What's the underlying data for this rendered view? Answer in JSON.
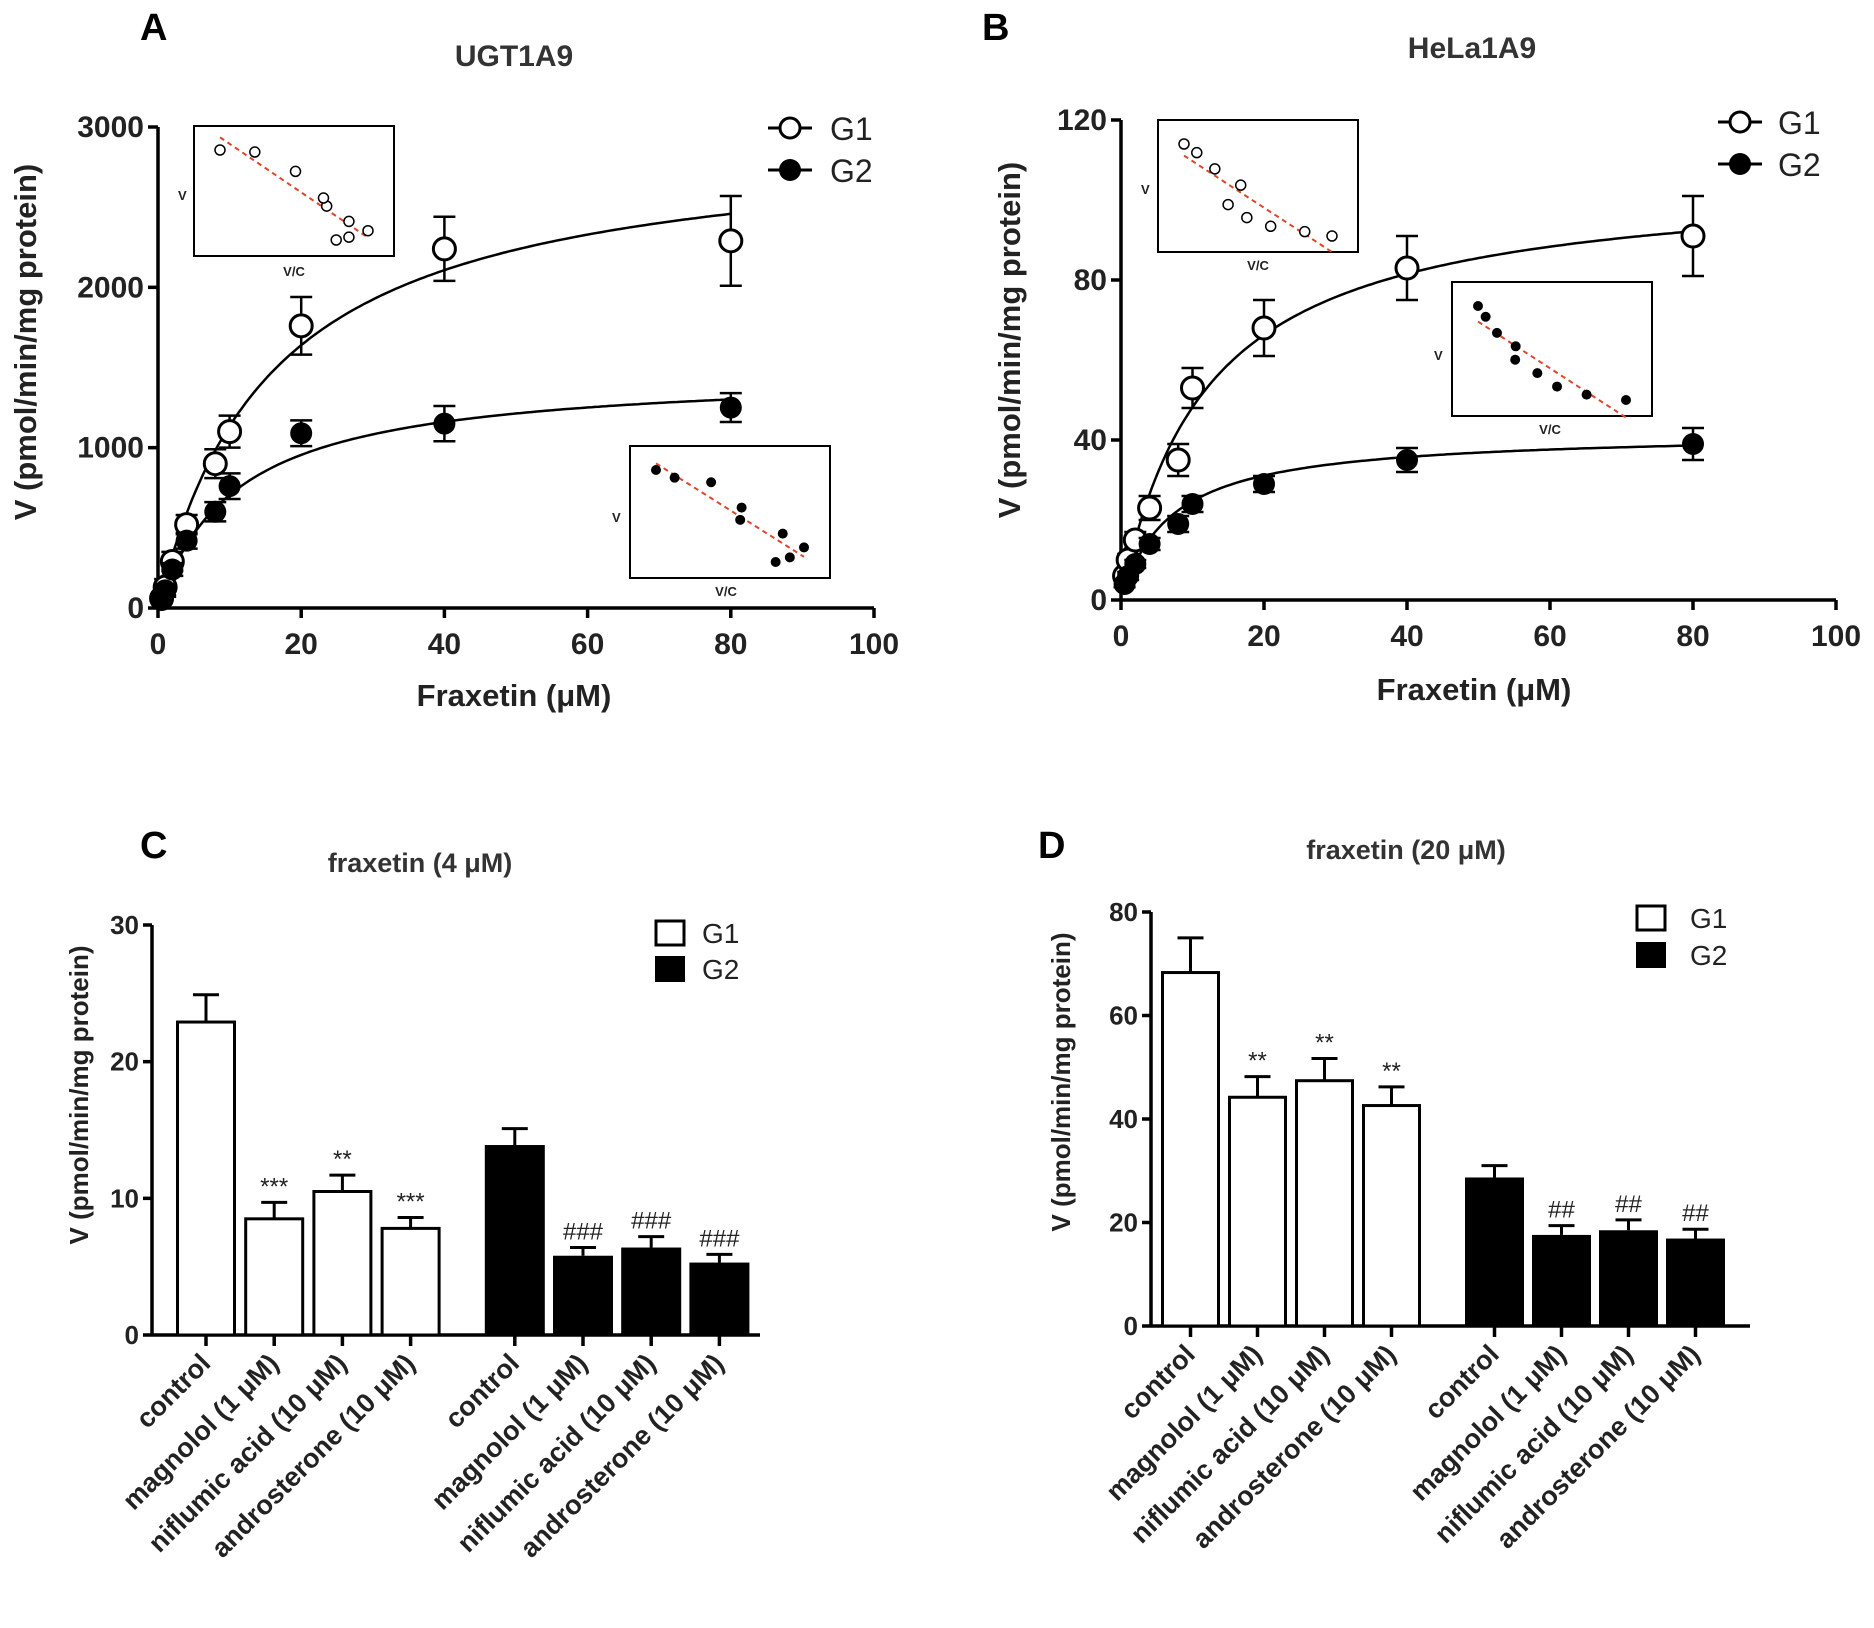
{
  "chart_data": [
    {
      "panel": "A",
      "type": "scatter",
      "title": "UGT1A9",
      "xlabel": "Fraxetin (μM)",
      "ylabel": "V (pmol/min/mg protein)",
      "xlim": [
        0,
        100
      ],
      "ylim": [
        0,
        3000
      ],
      "xticks": [
        0,
        20,
        40,
        60,
        80,
        100
      ],
      "yticks": [
        0,
        1000,
        2000,
        3000
      ],
      "x": [
        0.5,
        1,
        2,
        4,
        8,
        10,
        20,
        40,
        80
      ],
      "series": [
        {
          "name": "G1",
          "marker": "open-circle",
          "values": [
            60,
            130,
            290,
            520,
            900,
            1100,
            1760,
            2240,
            2290
          ],
          "errors": [
            30,
            50,
            60,
            60,
            90,
            100,
            180,
            200,
            280
          ],
          "fit": {
            "vmax": 2950,
            "km": 16
          }
        },
        {
          "name": "G2",
          "marker": "filled-circle",
          "values": [
            50,
            110,
            240,
            420,
            600,
            760,
            1090,
            1150,
            1250
          ],
          "errors": [
            20,
            40,
            40,
            50,
            60,
            80,
            80,
            110,
            90
          ],
          "fit": {
            "vmax": 1480,
            "km": 11
          }
        }
      ],
      "insets": [
        {
          "series": "G1",
          "ylabel": "V",
          "xlabel": "V/C"
        },
        {
          "series": "G2",
          "ylabel": "V",
          "xlabel": "V/C"
        }
      ]
    },
    {
      "panel": "B",
      "type": "scatter",
      "title": "HeLa1A9",
      "xlabel": "Fraxetin (μM)",
      "ylabel": "V (pmol/min/mg protein)",
      "xlim": [
        0,
        100
      ],
      "ylim": [
        0,
        120
      ],
      "xticks": [
        0,
        20,
        40,
        60,
        80,
        100
      ],
      "yticks": [
        0,
        40,
        80,
        120
      ],
      "x": [
        0.5,
        1,
        2,
        4,
        8,
        10,
        20,
        40,
        80
      ],
      "series": [
        {
          "name": "G1",
          "marker": "open-circle",
          "values": [
            6,
            10,
            15,
            23,
            35,
            53,
            68,
            83,
            91
          ],
          "errors": [
            1,
            1.5,
            2,
            3,
            4,
            5,
            7,
            8,
            10
          ],
          "fit": {
            "vmax": 106,
            "km": 12
          }
        },
        {
          "name": "G2",
          "marker": "filled-circle",
          "values": [
            4,
            6,
            9,
            14,
            19,
            24,
            29,
            35,
            39
          ],
          "errors": [
            0.8,
            1,
            1,
            1.5,
            2,
            2,
            2,
            3,
            4
          ],
          "fit": {
            "vmax": 42,
            "km": 7
          }
        }
      ],
      "insets": [
        {
          "series": "G1",
          "ylabel": "V",
          "xlabel": "V/C"
        },
        {
          "series": "G2",
          "ylabel": "V",
          "xlabel": "V/C"
        }
      ]
    },
    {
      "panel": "C",
      "type": "bar",
      "title": "fraxetin (4 μM)",
      "ylabel": "V (pmol/min/mg protein)",
      "ylim": [
        0,
        30
      ],
      "yticks": [
        0,
        10,
        20,
        30
      ],
      "legend": [
        "G1",
        "G2"
      ],
      "categories": [
        "control",
        "magnolol (1 μM)",
        "niflumic acid (10 μM)",
        "androsterone (10 μM)",
        "control",
        "magnolol (1 μM)",
        "niflumic acid (10 μM)",
        "androsterone (10 μM)"
      ],
      "groups": [
        "G1",
        "G1",
        "G1",
        "G1",
        "G2",
        "G2",
        "G2",
        "G2"
      ],
      "values": [
        22.9,
        8.5,
        10.5,
        7.8,
        13.9,
        5.8,
        6.4,
        5.3
      ],
      "errors": [
        2.0,
        1.2,
        1.2,
        0.8,
        1.2,
        0.6,
        0.8,
        0.6
      ],
      "annotations": [
        "",
        "***",
        "**",
        "***",
        "",
        "###",
        "###",
        "###"
      ]
    },
    {
      "panel": "D",
      "type": "bar",
      "title": "fraxetin (20 μM)",
      "ylabel": "V (pmol/min/mg protein)",
      "ylim": [
        0,
        80
      ],
      "yticks": [
        0,
        20,
        40,
        60,
        80
      ],
      "legend": [
        "G1",
        "G2"
      ],
      "categories": [
        "control",
        "magnolol (1 μM)",
        "niflumic acid (10 μM)",
        "androsterone (10 μM)",
        "control",
        "magnolol (1 μM)",
        "niflumic acid (10 μM)",
        "androsterone (10 μM)"
      ],
      "groups": [
        "G1",
        "G1",
        "G1",
        "G1",
        "G2",
        "G2",
        "G2",
        "G2"
      ],
      "values": [
        68.3,
        44.2,
        47.4,
        42.6,
        28.7,
        17.6,
        18.5,
        16.9
      ],
      "errors": [
        6.7,
        4.0,
        4.3,
        3.6,
        2.3,
        1.8,
        2.0,
        1.8
      ],
      "annotations": [
        "",
        "**",
        "**",
        "**",
        "",
        "##",
        "##",
        "##"
      ]
    }
  ]
}
